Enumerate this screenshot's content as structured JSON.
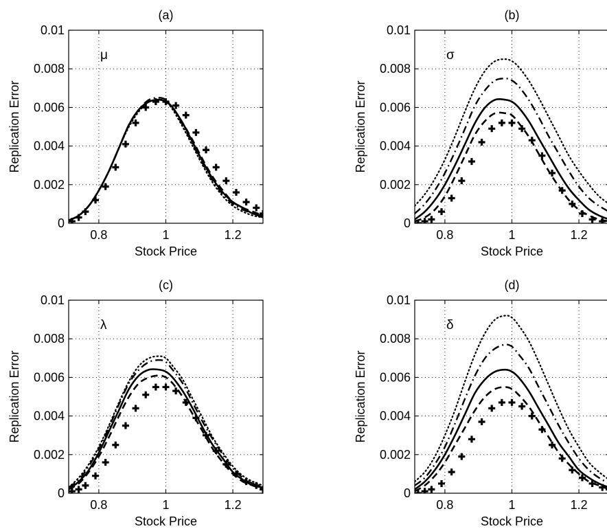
{
  "chart_data": [
    {
      "type": "line",
      "panel": "(a)",
      "title": "(a)",
      "param_label": "μ",
      "xlabel": "Stock Price",
      "ylabel": "Replication Error",
      "xlim": [
        0.71,
        1.29
      ],
      "ylim": [
        0,
        0.01
      ],
      "xticks": [
        0.8,
        1,
        1.2
      ],
      "xtick_labels": [
        "0.8",
        "1",
        "1.2"
      ],
      "yticks": [
        0,
        0.002,
        0.004,
        0.006,
        0.008,
        0.01
      ],
      "ytick_labels": [
        "0",
        "0.002",
        "0.004",
        "0.006",
        "0.008",
        "0.01"
      ],
      "grid": true,
      "x": [
        0.71,
        0.74,
        0.77,
        0.8,
        0.83,
        0.86,
        0.89,
        0.92,
        0.95,
        0.98,
        1.0,
        1.02,
        1.05,
        1.08,
        1.11,
        1.14,
        1.17,
        1.2,
        1.23,
        1.26,
        1.29
      ],
      "series": [
        {
          "style": "dotted",
          "values": [
            0.00015,
            0.0004,
            0.0009,
            0.0017,
            0.0027,
            0.0039,
            0.005,
            0.0058,
            0.0063,
            0.0064,
            0.0063,
            0.0059,
            0.005,
            0.004,
            0.003,
            0.0021,
            0.0014,
            0.0009,
            0.0006,
            0.0004,
            0.0003
          ]
        },
        {
          "style": "dashdot",
          "values": [
            0.00015,
            0.0004,
            0.0009,
            0.0017,
            0.0027,
            0.0039,
            0.0051,
            0.0059,
            0.0064,
            0.0065,
            0.0064,
            0.006,
            0.0051,
            0.0041,
            0.0031,
            0.0022,
            0.0015,
            0.001,
            0.0007,
            0.0005,
            0.0003
          ]
        },
        {
          "style": "solid",
          "values": [
            0.00015,
            0.0004,
            0.0009,
            0.0017,
            0.0027,
            0.0039,
            0.0051,
            0.0059,
            0.0063,
            0.0064,
            0.0063,
            0.006,
            0.0052,
            0.0042,
            0.0032,
            0.0023,
            0.0016,
            0.0011,
            0.0008,
            0.0005,
            0.0004
          ]
        },
        {
          "style": "dashed",
          "values": [
            0.00015,
            0.0004,
            0.0009,
            0.0017,
            0.0027,
            0.0039,
            0.0051,
            0.0059,
            0.0063,
            0.0064,
            0.0063,
            0.006,
            0.0052,
            0.0043,
            0.0033,
            0.0024,
            0.0017,
            0.0011,
            0.0008,
            0.0006,
            0.0004
          ]
        },
        {
          "style": "plus-markers",
          "marker_x": [
            0.72,
            0.74,
            0.76,
            0.79,
            0.82,
            0.85,
            0.88,
            0.91,
            0.94,
            0.97,
            1.0,
            1.03,
            1.06,
            1.09,
            1.12,
            1.15,
            1.18,
            1.21,
            1.24,
            1.27,
            1.29
          ],
          "marker_y": [
            0.0001,
            0.0003,
            0.0006,
            0.0012,
            0.0019,
            0.0029,
            0.0041,
            0.0052,
            0.006,
            0.0063,
            0.0063,
            0.0061,
            0.0056,
            0.0047,
            0.0038,
            0.0029,
            0.0022,
            0.0016,
            0.0011,
            0.0008,
            0.0005
          ]
        }
      ]
    },
    {
      "type": "line",
      "panel": "(b)",
      "title": "(b)",
      "param_label": "σ",
      "xlabel": "Stock Price",
      "ylabel": "Replication Error",
      "xlim": [
        0.71,
        1.29
      ],
      "ylim": [
        0,
        0.01
      ],
      "xticks": [
        0.8,
        1,
        1.2
      ],
      "xtick_labels": [
        "0.8",
        "1",
        "1.2"
      ],
      "yticks": [
        0,
        0.002,
        0.004,
        0.006,
        0.008,
        0.01
      ],
      "ytick_labels": [
        "0",
        "0.002",
        "0.004",
        "0.006",
        "0.008",
        "0.01"
      ],
      "grid": true,
      "x": [
        0.71,
        0.74,
        0.77,
        0.8,
        0.83,
        0.86,
        0.89,
        0.92,
        0.95,
        0.98,
        1.0,
        1.02,
        1.05,
        1.08,
        1.11,
        1.14,
        1.17,
        1.2,
        1.23,
        1.26,
        1.29
      ],
      "series": [
        {
          "style": "dotted",
          "values": [
            0.0009,
            0.0015,
            0.0023,
            0.0033,
            0.0045,
            0.0058,
            0.007,
            0.0079,
            0.0084,
            0.0085,
            0.0084,
            0.0081,
            0.0074,
            0.0065,
            0.0055,
            0.0045,
            0.0035,
            0.0027,
            0.002,
            0.0014,
            0.001
          ]
        },
        {
          "style": "dashdot",
          "values": [
            0.0005,
            0.001,
            0.0017,
            0.0026,
            0.0037,
            0.0049,
            0.0061,
            0.0069,
            0.0074,
            0.0075,
            0.0074,
            0.0071,
            0.0064,
            0.0055,
            0.0045,
            0.0036,
            0.0027,
            0.0019,
            0.0013,
            0.0009,
            0.0006
          ]
        },
        {
          "style": "solid",
          "values": [
            0.0002,
            0.0006,
            0.0012,
            0.002,
            0.003,
            0.0041,
            0.0052,
            0.006,
            0.0064,
            0.0064,
            0.0063,
            0.006,
            0.0053,
            0.0044,
            0.0035,
            0.0026,
            0.0018,
            0.0012,
            0.0007,
            0.0004,
            0.0002
          ]
        },
        {
          "style": "dashed",
          "values": [
            0.0001,
            0.0003,
            0.0007,
            0.0014,
            0.0024,
            0.0035,
            0.0046,
            0.0053,
            0.0057,
            0.0057,
            0.0056,
            0.0052,
            0.0045,
            0.0036,
            0.0027,
            0.0019,
            0.0012,
            0.0007,
            0.0004,
            0.0002,
            0.0001
          ]
        },
        {
          "style": "plus-markers",
          "marker_x": [
            0.72,
            0.74,
            0.76,
            0.79,
            0.82,
            0.85,
            0.88,
            0.91,
            0.94,
            0.97,
            1.0,
            1.03,
            1.06,
            1.09,
            1.12,
            1.15,
            1.18,
            1.21,
            1.24,
            1.27
          ],
          "marker_y": [
            0.0,
            0.0001,
            0.0002,
            0.0006,
            0.0013,
            0.0022,
            0.0032,
            0.0042,
            0.0049,
            0.0052,
            0.0052,
            0.0049,
            0.0043,
            0.0035,
            0.0026,
            0.0017,
            0.001,
            0.0005,
            0.0002,
            0.0001
          ]
        }
      ]
    },
    {
      "type": "line",
      "panel": "(c)",
      "title": "(c)",
      "param_label": "λ",
      "xlabel": "Stock Price",
      "ylabel": "Replication Error",
      "xlim": [
        0.71,
        1.29
      ],
      "ylim": [
        0,
        0.01
      ],
      "xticks": [
        0.8,
        1,
        1.2
      ],
      "xtick_labels": [
        "0.8",
        "1",
        "1.2"
      ],
      "yticks": [
        0,
        0.002,
        0.004,
        0.006,
        0.008,
        0.01
      ],
      "ytick_labels": [
        "0",
        "0.002",
        "0.004",
        "0.006",
        "0.008",
        "0.01"
      ],
      "grid": true,
      "x": [
        0.71,
        0.74,
        0.77,
        0.8,
        0.83,
        0.86,
        0.89,
        0.92,
        0.95,
        0.98,
        1.0,
        1.02,
        1.05,
        1.08,
        1.11,
        1.14,
        1.17,
        1.2,
        1.23,
        1.26,
        1.29
      ],
      "series": [
        {
          "style": "dotted",
          "values": [
            0.0003,
            0.0008,
            0.0015,
            0.0024,
            0.0035,
            0.0047,
            0.0058,
            0.0066,
            0.007,
            0.0071,
            0.007,
            0.0066,
            0.0059,
            0.0049,
            0.0039,
            0.0029,
            0.0021,
            0.0014,
            0.0009,
            0.0006,
            0.0004
          ]
        },
        {
          "style": "dashdot",
          "values": [
            0.0003,
            0.0007,
            0.0014,
            0.0023,
            0.0034,
            0.0046,
            0.0057,
            0.0064,
            0.0068,
            0.0069,
            0.0068,
            0.0064,
            0.0057,
            0.0047,
            0.0037,
            0.0028,
            0.002,
            0.0013,
            0.0008,
            0.0005,
            0.0003
          ]
        },
        {
          "style": "solid",
          "values": [
            0.0002,
            0.0006,
            0.0012,
            0.0021,
            0.0032,
            0.0043,
            0.0054,
            0.0061,
            0.0064,
            0.0064,
            0.0063,
            0.006,
            0.0053,
            0.0044,
            0.0034,
            0.0025,
            0.0018,
            0.0011,
            0.0007,
            0.0004,
            0.0003
          ]
        },
        {
          "style": "dashed",
          "values": [
            0.0002,
            0.0005,
            0.0011,
            0.0019,
            0.0029,
            0.004,
            0.005,
            0.0057,
            0.006,
            0.0061,
            0.006,
            0.0057,
            0.005,
            0.0041,
            0.0032,
            0.0023,
            0.0016,
            0.001,
            0.0006,
            0.0004,
            0.0002
          ]
        },
        {
          "style": "plus-markers",
          "marker_x": [
            0.72,
            0.74,
            0.76,
            0.79,
            0.82,
            0.85,
            0.88,
            0.91,
            0.94,
            0.97,
            1.0,
            1.03,
            1.06,
            1.09,
            1.12,
            1.15,
            1.18,
            1.21,
            1.24,
            1.27,
            1.29
          ],
          "marker_y": [
            0.0001,
            0.0002,
            0.0004,
            0.0009,
            0.0016,
            0.0025,
            0.0035,
            0.0044,
            0.0051,
            0.0055,
            0.0055,
            0.0053,
            0.0047,
            0.0039,
            0.003,
            0.0022,
            0.0015,
            0.001,
            0.0006,
            0.0004,
            0.0002
          ]
        }
      ]
    },
    {
      "type": "line",
      "panel": "(d)",
      "title": "(d)",
      "param_label": "δ",
      "xlabel": "Stock Price",
      "ylabel": "Replication Error",
      "xlim": [
        0.71,
        1.29
      ],
      "ylim": [
        0,
        0.01
      ],
      "xticks": [
        0.8,
        1,
        1.2
      ],
      "xtick_labels": [
        "0.8",
        "1",
        "1.2"
      ],
      "yticks": [
        0,
        0.002,
        0.004,
        0.006,
        0.008,
        0.01
      ],
      "ytick_labels": [
        "0",
        "0.002",
        "0.004",
        "0.006",
        "0.008",
        "0.01"
      ],
      "grid": true,
      "x": [
        0.71,
        0.74,
        0.77,
        0.8,
        0.83,
        0.86,
        0.89,
        0.92,
        0.95,
        0.98,
        1.0,
        1.02,
        1.05,
        1.08,
        1.11,
        1.14,
        1.17,
        1.2,
        1.23,
        1.26,
        1.29
      ],
      "series": [
        {
          "style": "dotted",
          "values": [
            0.0006,
            0.0011,
            0.0019,
            0.003,
            0.0043,
            0.0058,
            0.0072,
            0.0083,
            0.009,
            0.0092,
            0.0091,
            0.0087,
            0.0079,
            0.0068,
            0.0056,
            0.0044,
            0.0033,
            0.0024,
            0.0016,
            0.0011,
            0.0007
          ]
        },
        {
          "style": "dashdot",
          "values": [
            0.0004,
            0.0008,
            0.0015,
            0.0024,
            0.0036,
            0.0049,
            0.0061,
            0.007,
            0.0075,
            0.0077,
            0.0076,
            0.0072,
            0.0065,
            0.0055,
            0.0045,
            0.0035,
            0.0026,
            0.0018,
            0.0012,
            0.0008,
            0.0005
          ]
        },
        {
          "style": "solid",
          "values": [
            0.0002,
            0.0006,
            0.0012,
            0.002,
            0.003,
            0.0041,
            0.0052,
            0.0059,
            0.0063,
            0.0064,
            0.0063,
            0.006,
            0.0053,
            0.0044,
            0.0035,
            0.0026,
            0.0019,
            0.0012,
            0.0008,
            0.0005,
            0.0003
          ]
        },
        {
          "style": "dashed",
          "values": [
            0.0001,
            0.0004,
            0.0009,
            0.0016,
            0.0025,
            0.0034,
            0.0043,
            0.005,
            0.0054,
            0.0055,
            0.0054,
            0.0051,
            0.0045,
            0.0037,
            0.0029,
            0.0021,
            0.0015,
            0.001,
            0.0006,
            0.0004,
            0.0002
          ]
        },
        {
          "style": "plus-markers",
          "marker_x": [
            0.72,
            0.74,
            0.76,
            0.79,
            0.82,
            0.85,
            0.88,
            0.91,
            0.94,
            0.97,
            1.0,
            1.03,
            1.06,
            1.09,
            1.12,
            1.15,
            1.18,
            1.21,
            1.24,
            1.27,
            1.29
          ],
          "marker_y": [
            0.0,
            0.0001,
            0.0002,
            0.0005,
            0.0011,
            0.0019,
            0.0028,
            0.0037,
            0.0044,
            0.0047,
            0.0047,
            0.0045,
            0.004,
            0.0033,
            0.0025,
            0.0018,
            0.0012,
            0.0008,
            0.0005,
            0.0003,
            0.0002
          ]
        }
      ]
    }
  ]
}
